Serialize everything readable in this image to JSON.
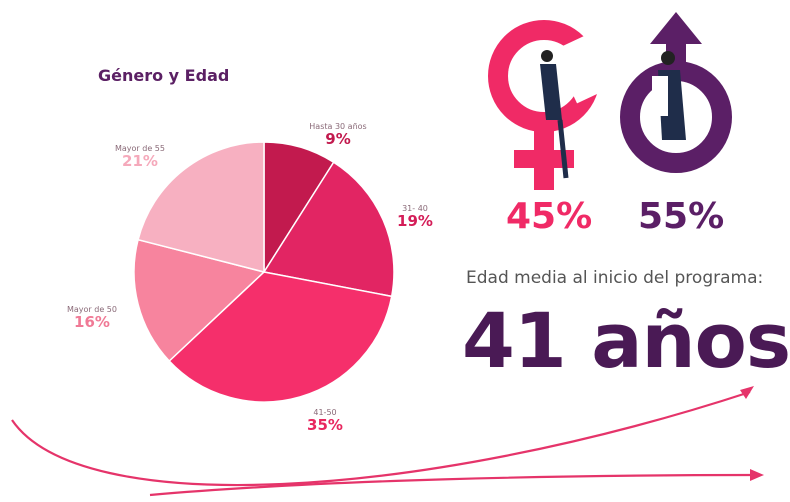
{
  "chart_data": {
    "type": "pie",
    "title": "Género y Edad",
    "categories": [
      "Hasta 30 años",
      "31- 40",
      "41-50",
      "Mayor de 50",
      "Mayor de 55"
    ],
    "values": [
      9,
      19,
      35,
      16,
      21
    ],
    "value_labels": [
      "9%",
      "19%",
      "35%",
      "16%",
      "21%"
    ],
    "colors": [
      "#c21a4e",
      "#e22563",
      "#f52f6b",
      "#f7849e",
      "#f7b0c1"
    ],
    "label_colors": [
      "#c21a4e",
      "#d41d58",
      "#e8275f",
      "#f07a96",
      "#f5a9bb"
    ],
    "legend": "none"
  },
  "gender": {
    "female": {
      "value": "45%",
      "color": "#f02a66",
      "icon": "female-symbol-icon"
    },
    "male": {
      "value": "55%",
      "color": "#5b1f66",
      "icon": "male-symbol-icon"
    }
  },
  "age": {
    "label": "Edad media al inicio del programa:",
    "value": "41 años",
    "color": "#4a1a55"
  }
}
